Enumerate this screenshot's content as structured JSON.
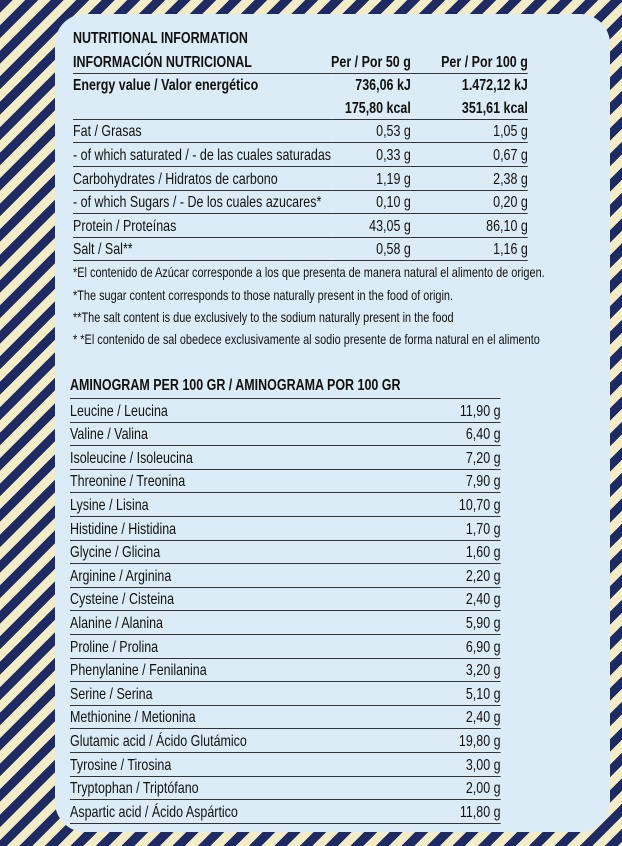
{
  "nutrition": {
    "title": "NUTRITIONAL INFORMATION",
    "subtitle": "INFORMACIÓN NUTRICIONAL",
    "col_50": "Per / Por 50 g",
    "col_100": "Per / Por 100 g",
    "energy": {
      "label": "Energy value  / Valor energético",
      "kj_50": "736,06 kJ",
      "kj_100": "1.472,12 kJ",
      "kcal_50": "175,80 kcal",
      "kcal_100": "351,61 kcal"
    },
    "rows": [
      [
        "Fat / Grasas",
        "0,53 g",
        "1,05 g"
      ],
      [
        "- of which saturated / - de las cuales saturadas",
        "0,33 g",
        "0,67 g"
      ],
      [
        "Carbohydrates  / Hidratos de carbono",
        "1,19 g",
        "2,38 g"
      ],
      [
        "- of which Sugars / - De los cuales azucares*",
        "0,10 g",
        "0,20 g"
      ],
      [
        "Protein / Proteínas",
        "43,05 g",
        "86,10 g"
      ],
      [
        "Salt / Sal**",
        "0,58 g",
        "1,16 g"
      ]
    ],
    "notes": [
      "*El contenido de Azúcar corresponde a los que presenta de manera natural el alimento de origen.",
      "*The sugar content corresponds to those naturally present in the food of origin.",
      "**The salt content is due exclusively to the sodium naturally present in the food",
      "* *El contenido de sal obedece exclusivamente al sodio presente de forma natural en el alimento"
    ]
  },
  "aminogram": {
    "title": "AMINOGRAM PER 100 GR / AMINOGRAMA POR 100 GR",
    "rows": [
      [
        "Leucine / Leucina",
        "11,90 g"
      ],
      [
        "Valine / Valina",
        "6,40 g"
      ],
      [
        "Isoleucine / Isoleucina",
        "7,20 g"
      ],
      [
        "Threonine / Treonina",
        "7,90 g"
      ],
      [
        "Lysine / Lisina",
        "10,70 g"
      ],
      [
        "Histidine / Histidina",
        "1,70 g"
      ],
      [
        "Glycine / Glicina",
        "1,60 g"
      ],
      [
        "Arginine / Arginina",
        "2,20 g"
      ],
      [
        "Cysteine / Cisteina",
        "2,40 g"
      ],
      [
        "Alanine / Alanina",
        "5,90 g"
      ],
      [
        "Proline / Prolina",
        "6,90 g"
      ],
      [
        "Phenylanine / Fenilanina",
        "3,20 g"
      ],
      [
        "Serine / Serina",
        "5,10 g"
      ],
      [
        "Methionine / Metionina",
        "2,40 g"
      ],
      [
        "Glutamic acid / Ácido Glutámico",
        "19,80 g"
      ],
      [
        "Tyrosine / Tirosina",
        "3,00 g"
      ],
      [
        "Tryptophan / Triptófano",
        "2,00 g"
      ],
      [
        "Aspartic acid / Ácido Aspártico",
        "11,80 g"
      ]
    ]
  }
}
